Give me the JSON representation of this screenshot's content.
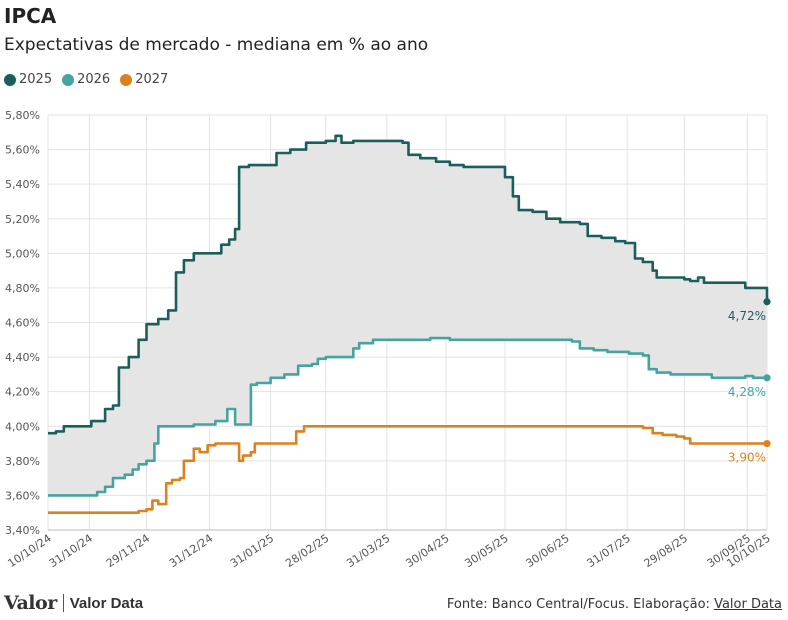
{
  "header": {
    "title": "IPCA",
    "subtitle": "Expectativas de mercado - mediana em % ao ano"
  },
  "legend": [
    {
      "label": "2025",
      "color": "#1c5e5c"
    },
    {
      "label": "2026",
      "color": "#45a3a0"
    },
    {
      "label": "2027",
      "color": "#d9821f"
    }
  ],
  "footer": {
    "logo_brand": "Valor",
    "logo_product": "Valor Data",
    "source_prefix": "Fonte: Banco Central/Focus. Elaboração: ",
    "source_link": "Valor Data"
  },
  "chart_data": {
    "type": "line",
    "title": "IPCA",
    "subtitle": "Expectativas de mercado - mediana em % ao ano",
    "ylim": [
      3.4,
      5.8
    ],
    "yticks": [
      "3,40%",
      "3,60%",
      "3,80%",
      "4,00%",
      "4,20%",
      "4,40%",
      "4,60%",
      "4,80%",
      "5,00%",
      "5,20%",
      "5,40%",
      "5,60%",
      "5,80%"
    ],
    "xlim": [
      "10/10/24",
      "10/10/25"
    ],
    "xticks": [
      "10/10/24",
      "31/10/24",
      "29/11/24",
      "31/12/24",
      "31/01/25",
      "28/02/25",
      "31/03/25",
      "30/04/25",
      "30/05/25",
      "30/06/25",
      "31/07/25",
      "29/08/25",
      "30/09/25",
      "10/10/25"
    ],
    "grid": true,
    "legend_position": "top-left",
    "shaded_band_between": [
      "2025",
      "2026"
    ],
    "end_labels": [
      "4,72%",
      "4,28%",
      "3,90%"
    ],
    "series": [
      {
        "name": "2025",
        "color": "#1c5e5c",
        "points": [
          [
            "2024-10-10",
            3.96
          ],
          [
            "2024-10-14",
            3.97
          ],
          [
            "2024-10-18",
            4.0
          ],
          [
            "2024-10-25",
            4.0
          ],
          [
            "2024-11-01",
            4.03
          ],
          [
            "2024-11-08",
            4.1
          ],
          [
            "2024-11-12",
            4.12
          ],
          [
            "2024-11-15",
            4.34
          ],
          [
            "2024-11-20",
            4.4
          ],
          [
            "2024-11-25",
            4.5
          ],
          [
            "2024-11-29",
            4.59
          ],
          [
            "2024-12-05",
            4.62
          ],
          [
            "2024-12-10",
            4.67
          ],
          [
            "2024-12-14",
            4.89
          ],
          [
            "2024-12-18",
            4.96
          ],
          [
            "2024-12-23",
            5.0
          ],
          [
            "2024-12-30",
            5.0
          ],
          [
            "2025-01-06",
            5.05
          ],
          [
            "2025-01-10",
            5.08
          ],
          [
            "2025-01-13",
            5.14
          ],
          [
            "2025-01-15",
            5.5
          ],
          [
            "2025-01-20",
            5.51
          ],
          [
            "2025-01-30",
            5.51
          ],
          [
            "2025-02-03",
            5.58
          ],
          [
            "2025-02-10",
            5.6
          ],
          [
            "2025-02-18",
            5.64
          ],
          [
            "2025-02-28",
            5.65
          ],
          [
            "2025-03-05",
            5.68
          ],
          [
            "2025-03-08",
            5.64
          ],
          [
            "2025-03-14",
            5.65
          ],
          [
            "2025-04-04",
            5.65
          ],
          [
            "2025-04-08",
            5.64
          ],
          [
            "2025-04-11",
            5.57
          ],
          [
            "2025-04-17",
            5.55
          ],
          [
            "2025-04-25",
            5.53
          ],
          [
            "2025-05-02",
            5.51
          ],
          [
            "2025-05-09",
            5.5
          ],
          [
            "2025-05-23",
            5.5
          ],
          [
            "2025-05-30",
            5.44
          ],
          [
            "2025-06-03",
            5.33
          ],
          [
            "2025-06-06",
            5.25
          ],
          [
            "2025-06-13",
            5.24
          ],
          [
            "2025-06-20",
            5.2
          ],
          [
            "2025-06-27",
            5.18
          ],
          [
            "2025-07-07",
            5.17
          ],
          [
            "2025-07-11",
            5.1
          ],
          [
            "2025-07-18",
            5.09
          ],
          [
            "2025-07-25",
            5.07
          ],
          [
            "2025-07-30",
            5.06
          ],
          [
            "2025-08-04",
            4.97
          ],
          [
            "2025-08-08",
            4.95
          ],
          [
            "2025-08-13",
            4.9
          ],
          [
            "2025-08-15",
            4.86
          ],
          [
            "2025-08-29",
            4.85
          ],
          [
            "2025-09-01",
            4.84
          ],
          [
            "2025-09-05",
            4.86
          ],
          [
            "2025-09-08",
            4.83
          ],
          [
            "2025-09-19",
            4.83
          ],
          [
            "2025-09-29",
            4.8
          ],
          [
            "2025-10-06",
            4.8
          ],
          [
            "2025-10-10",
            4.72
          ]
        ]
      },
      {
        "name": "2026",
        "color": "#45a3a0",
        "points": [
          [
            "2024-10-10",
            3.6
          ],
          [
            "2024-10-30",
            3.6
          ],
          [
            "2024-11-04",
            3.62
          ],
          [
            "2024-11-08",
            3.65
          ],
          [
            "2024-11-12",
            3.7
          ],
          [
            "2024-11-18",
            3.72
          ],
          [
            "2024-11-22",
            3.75
          ],
          [
            "2024-11-25",
            3.78
          ],
          [
            "2024-11-29",
            3.8
          ],
          [
            "2024-12-03",
            3.9
          ],
          [
            "2024-12-05",
            4.0
          ],
          [
            "2024-12-19",
            4.0
          ],
          [
            "2024-12-23",
            4.01
          ],
          [
            "2025-01-03",
            4.03
          ],
          [
            "2025-01-09",
            4.1
          ],
          [
            "2025-01-13",
            4.01
          ],
          [
            "2025-01-17",
            4.01
          ],
          [
            "2025-01-21",
            4.24
          ],
          [
            "2025-01-24",
            4.25
          ],
          [
            "2025-01-31",
            4.28
          ],
          [
            "2025-02-07",
            4.3
          ],
          [
            "2025-02-14",
            4.35
          ],
          [
            "2025-02-21",
            4.36
          ],
          [
            "2025-02-24",
            4.39
          ],
          [
            "2025-02-28",
            4.4
          ],
          [
            "2025-03-10",
            4.4
          ],
          [
            "2025-03-14",
            4.45
          ],
          [
            "2025-03-17",
            4.48
          ],
          [
            "2025-03-24",
            4.5
          ],
          [
            "2025-04-18",
            4.5
          ],
          [
            "2025-04-22",
            4.51
          ],
          [
            "2025-05-02",
            4.5
          ],
          [
            "2025-06-27",
            4.5
          ],
          [
            "2025-07-03",
            4.49
          ],
          [
            "2025-07-07",
            4.45
          ],
          [
            "2025-07-14",
            4.44
          ],
          [
            "2025-07-21",
            4.43
          ],
          [
            "2025-07-28",
            4.43
          ],
          [
            "2025-08-01",
            4.42
          ],
          [
            "2025-08-08",
            4.41
          ],
          [
            "2025-08-11",
            4.33
          ],
          [
            "2025-08-15",
            4.31
          ],
          [
            "2025-08-22",
            4.3
          ],
          [
            "2025-09-05",
            4.3
          ],
          [
            "2025-09-12",
            4.28
          ],
          [
            "2025-09-22",
            4.28
          ],
          [
            "2025-09-29",
            4.29
          ],
          [
            "2025-10-03",
            4.28
          ],
          [
            "2025-10-10",
            4.28
          ]
        ]
      },
      {
        "name": "2027",
        "color": "#d9821f",
        "points": [
          [
            "2024-10-10",
            3.5
          ],
          [
            "2024-11-15",
            3.5
          ],
          [
            "2024-11-25",
            3.51
          ],
          [
            "2024-11-29",
            3.52
          ],
          [
            "2024-12-02",
            3.57
          ],
          [
            "2024-12-05",
            3.55
          ],
          [
            "2024-12-09",
            3.67
          ],
          [
            "2024-12-12",
            3.69
          ],
          [
            "2024-12-16",
            3.7
          ],
          [
            "2024-12-18",
            3.8
          ],
          [
            "2024-12-21",
            3.8
          ],
          [
            "2024-12-23",
            3.87
          ],
          [
            "2024-12-26",
            3.85
          ],
          [
            "2024-12-30",
            3.89
          ],
          [
            "2025-01-03",
            3.9
          ],
          [
            "2025-01-13",
            3.9
          ],
          [
            "2025-01-15",
            3.8
          ],
          [
            "2025-01-17",
            3.83
          ],
          [
            "2025-01-21",
            3.85
          ],
          [
            "2025-01-23",
            3.9
          ],
          [
            "2025-02-10",
            3.9
          ],
          [
            "2025-02-13",
            3.97
          ],
          [
            "2025-02-17",
            4.0
          ],
          [
            "2025-08-04",
            4.0
          ],
          [
            "2025-08-08",
            3.99
          ],
          [
            "2025-08-13",
            3.96
          ],
          [
            "2025-08-18",
            3.95
          ],
          [
            "2025-08-25",
            3.94
          ],
          [
            "2025-08-29",
            3.93
          ],
          [
            "2025-09-01",
            3.9
          ],
          [
            "2025-09-10",
            3.9
          ],
          [
            "2025-10-10",
            3.9
          ]
        ]
      }
    ]
  }
}
